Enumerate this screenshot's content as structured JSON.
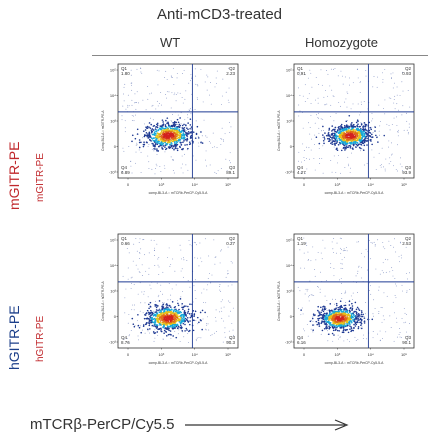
{
  "title": "Anti-mCD3-treated",
  "columns": [
    "WT",
    "Homozygote"
  ],
  "row_side_labels": {
    "row1_left": "mGITR-PE",
    "row1_right": "mGITR-PE",
    "row2_left": "hGITR-PE",
    "row2_right": "hGITR-PE"
  },
  "x_axis_label": "mTCRβ-PerCP/Cy5.5",
  "panel_axis": {
    "x_caption": "comp-BL3-A :: mTCRb-PerCP-Cy5-5-A",
    "y_caption_row1": "Comp-BL2-A :: mGITR-PE-A",
    "y_caption_row2": "Comp-BL2-A :: hGITR-PE-A",
    "x_ticks": [
      "0",
      "10³",
      "10⁴",
      "10⁵"
    ],
    "y_ticks": [
      "-10³",
      "0",
      "10³",
      "10⁴",
      "10⁵"
    ]
  },
  "panels": [
    {
      "q1": "Q1",
      "q1v": "1.80",
      "q2": "Q2",
      "q2v": "2.23",
      "q3": "Q3",
      "q3v": "89.1",
      "q4": "Q4",
      "q4v": "6.89"
    },
    {
      "q1": "Q1",
      "q1v": "0.91",
      "q2": "Q2",
      "q2v": "0.93",
      "q3": "Q3",
      "q3v": "93.9",
      "q4": "Q4",
      "q4v": "4.27"
    },
    {
      "q1": "Q1",
      "q1v": "0.66",
      "q2": "Q2",
      "q2v": "0.27",
      "q3": "Q3",
      "q3v": "90.3",
      "q4": "Q4",
      "q4v": "8.76"
    },
    {
      "q1": "Q1",
      "q1v": "1.19",
      "q2": "Q2",
      "q2v": "2.53",
      "q3": "Q3",
      "q3v": "90.1",
      "q4": "Q4",
      "q4v": "6.16"
    }
  ],
  "colors": {
    "title_text": "#333333",
    "side_label": "#c0282c",
    "hgitr_label": "#1c3f8a",
    "gate_line": "#1f3a93",
    "dot_blue": "#1f3a93",
    "dot_cyan": "#17a8d8",
    "dot_yellow": "#e6c11a",
    "dot_orange": "#e06a1a",
    "dot_red": "#d3201f"
  }
}
